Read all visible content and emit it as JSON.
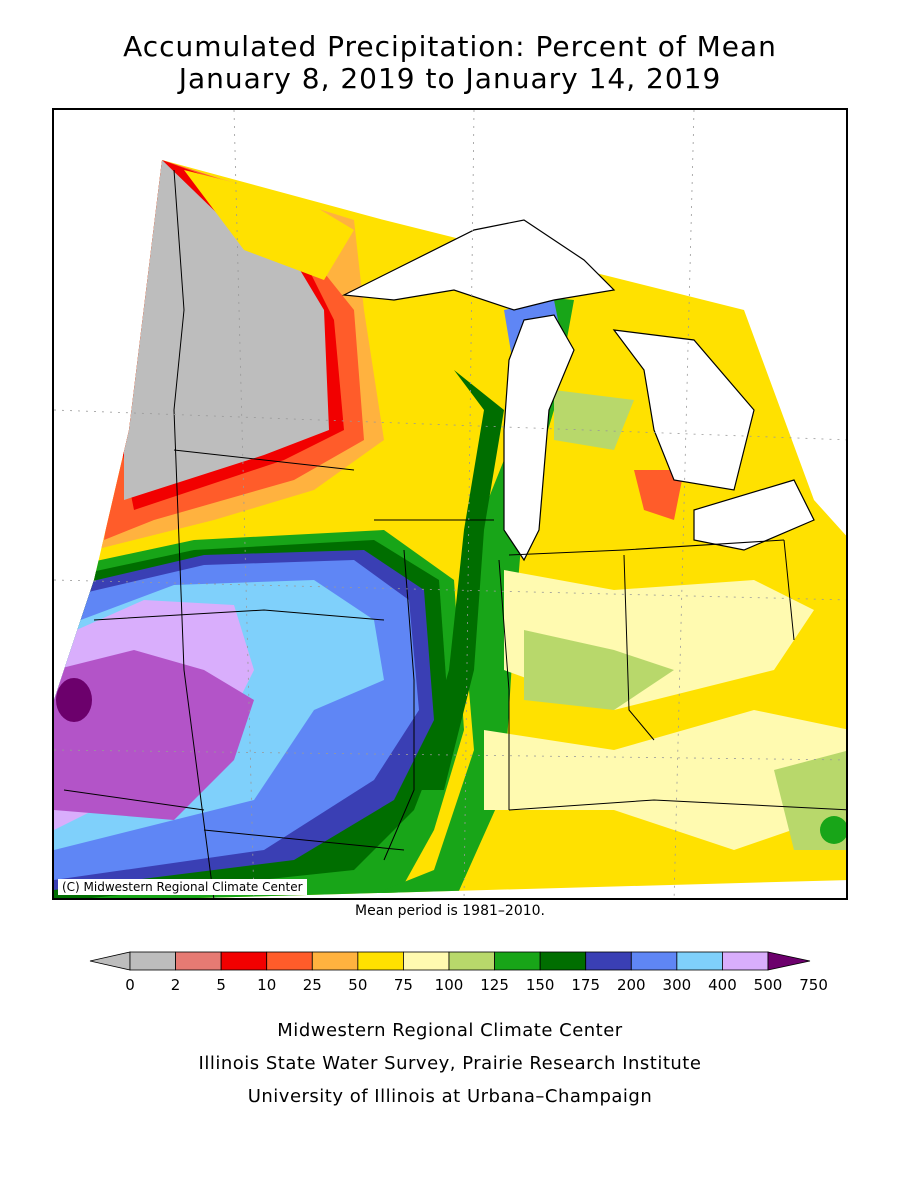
{
  "title_line1": "Accumulated Precipitation: Percent of Mean",
  "title_line2": "January 8, 2019 to January 14, 2019",
  "copyright": "(C) Midwestern Regional Climate Center",
  "mean_note": "Mean period is 1981–2010.",
  "legend": {
    "labels": [
      "0",
      "2",
      "5",
      "10",
      "25",
      "50",
      "75",
      "100",
      "125",
      "150",
      "175",
      "200",
      "300",
      "400",
      "500",
      "750"
    ],
    "colors": [
      "#bdbdbd",
      "#e67a73",
      "#f20000",
      "#ff5c2a",
      "#ffb23f",
      "#ffe100",
      "#fffab0",
      "#b8d86b",
      "#18a518",
      "#006e00",
      "#3a3fb4",
      "#5f86f5",
      "#7fd0fb",
      "#d9aefc",
      "#b354c8",
      "#6c006c"
    ]
  },
  "footer": {
    "line1": "Midwestern Regional Climate Center",
    "line2": "Illinois State Water Survey, Prairie Research Institute",
    "line3": "University of Illinois at Urbana–Champaign"
  }
}
